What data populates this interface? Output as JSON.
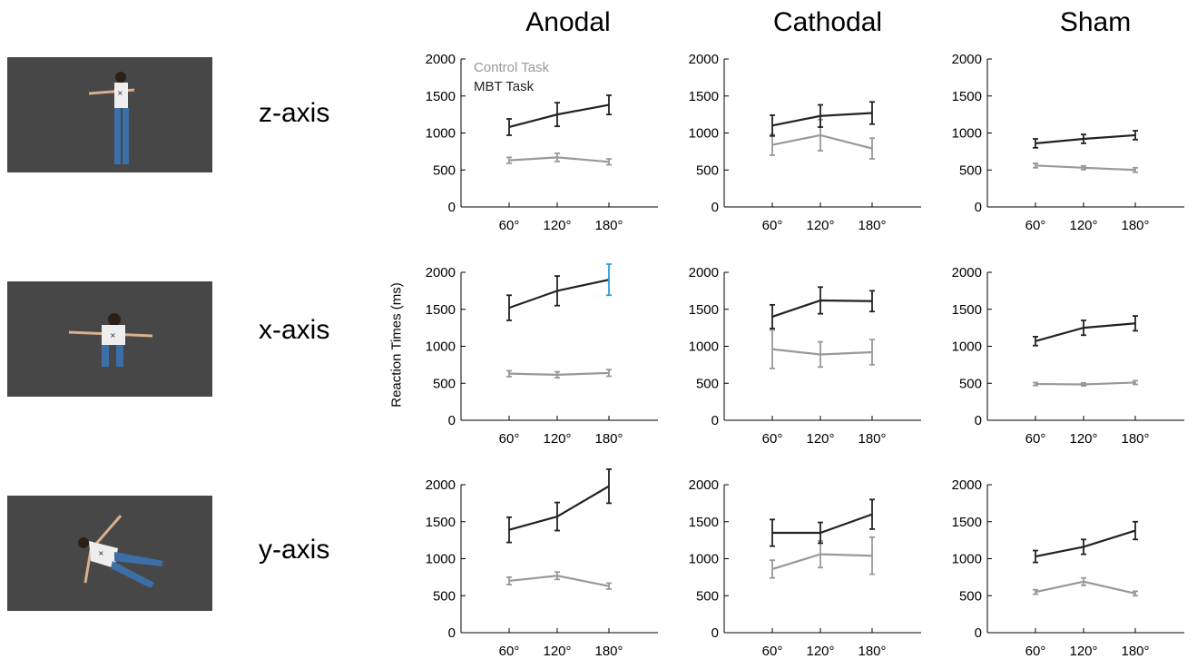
{
  "columns": [
    "Anodal",
    "Cathodal",
    "Sham"
  ],
  "rows": [
    "z-axis",
    "x-axis",
    "y-axis"
  ],
  "ylabel": "Reaction Times (ms)",
  "legend": {
    "control": "Control Task",
    "mbt": "MBT Task"
  },
  "colors": {
    "control": "#999999",
    "mbt": "#222222",
    "axis": "#000000",
    "highlight": "#2a9fd8"
  },
  "chart_data": {
    "type": "line",
    "x": [
      "60°",
      "120°",
      "180°"
    ],
    "ylim": [
      0,
      2000
    ],
    "yticks": [
      0,
      500,
      1000,
      1500,
      2000
    ],
    "panels": [
      {
        "column": "Anodal",
        "row": "z-axis",
        "series": [
          {
            "name": "Control Task",
            "values": [
              630,
              670,
              610
            ],
            "errors": [
              40,
              55,
              40
            ]
          },
          {
            "name": "MBT Task",
            "values": [
              1080,
              1250,
              1380
            ],
            "errors": [
              110,
              160,
              130
            ]
          }
        ]
      },
      {
        "column": "Cathodal",
        "row": "z-axis",
        "series": [
          {
            "name": "Control Task",
            "values": [
              840,
              970,
              790
            ],
            "errors": [
              140,
              210,
              140
            ]
          },
          {
            "name": "MBT Task",
            "values": [
              1100,
              1230,
              1270
            ],
            "errors": [
              140,
              150,
              150
            ]
          }
        ]
      },
      {
        "column": "Sham",
        "row": "z-axis",
        "series": [
          {
            "name": "Control Task",
            "values": [
              560,
              530,
              500
            ],
            "errors": [
              30,
              25,
              30
            ]
          },
          {
            "name": "MBT Task",
            "values": [
              860,
              920,
              970
            ],
            "errors": [
              60,
              60,
              60
            ]
          }
        ]
      },
      {
        "column": "Anodal",
        "row": "x-axis",
        "series": [
          {
            "name": "Control Task",
            "values": [
              630,
              615,
              640
            ],
            "errors": [
              40,
              40,
              45
            ]
          },
          {
            "name": "MBT Task",
            "values": [
              1520,
              1750,
              1900
            ],
            "errors": [
              170,
              200,
              210
            ]
          }
        ]
      },
      {
        "column": "Cathodal",
        "row": "x-axis",
        "series": [
          {
            "name": "Control Task",
            "values": [
              960,
              890,
              920
            ],
            "errors": [
              260,
              170,
              170
            ]
          },
          {
            "name": "MBT Task",
            "values": [
              1400,
              1620,
              1610
            ],
            "errors": [
              160,
              180,
              140
            ]
          }
        ]
      },
      {
        "column": "Sham",
        "row": "x-axis",
        "series": [
          {
            "name": "Control Task",
            "values": [
              490,
              485,
              510
            ],
            "errors": [
              20,
              20,
              25
            ]
          },
          {
            "name": "MBT Task",
            "values": [
              1070,
              1250,
              1310
            ],
            "errors": [
              60,
              100,
              100
            ]
          }
        ]
      },
      {
        "column": "Anodal",
        "row": "y-axis",
        "series": [
          {
            "name": "Control Task",
            "values": [
              700,
              770,
              630
            ],
            "errors": [
              50,
              50,
              40
            ]
          },
          {
            "name": "MBT Task",
            "values": [
              1390,
              1570,
              1980
            ],
            "errors": [
              170,
              190,
              230
            ]
          }
        ]
      },
      {
        "column": "Cathodal",
        "row": "y-axis",
        "series": [
          {
            "name": "Control Task",
            "values": [
              860,
              1060,
              1040
            ],
            "errors": [
              120,
              180,
              250
            ]
          },
          {
            "name": "MBT Task",
            "values": [
              1350,
              1350,
              1600
            ],
            "errors": [
              180,
              140,
              200
            ]
          }
        ]
      },
      {
        "column": "Sham",
        "row": "y-axis",
        "series": [
          {
            "name": "Control Task",
            "values": [
              550,
              690,
              530
            ],
            "errors": [
              30,
              50,
              30
            ]
          },
          {
            "name": "MBT Task",
            "values": [
              1030,
              1160,
              1380
            ],
            "errors": [
              80,
              100,
              120
            ]
          }
        ]
      }
    ]
  }
}
